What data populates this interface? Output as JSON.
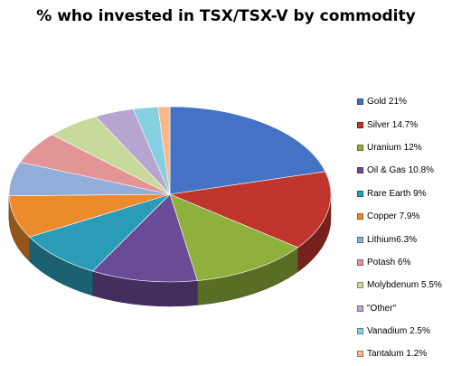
{
  "chart_data": {
    "type": "pie",
    "title": "% who invested in TSX/TSX-V by commodity",
    "legend_position": "right",
    "three_d": true,
    "slices": [
      {
        "label": "Gold",
        "legend": "Gold 21%",
        "value": 21,
        "color": "#4472c4"
      },
      {
        "label": "Silver",
        "legend": "Silver 14.7%",
        "value": 14.7,
        "color": "#c0352d"
      },
      {
        "label": "Uranium",
        "legend": "Uranium 12%",
        "value": 12,
        "color": "#8fb03c"
      },
      {
        "label": "Oil & Gas",
        "legend": "Oil & Gas 10.8%",
        "value": 10.8,
        "color": "#6a4c96"
      },
      {
        "label": "Rare Earth",
        "legend": "Rare Earth 9%",
        "value": 9,
        "color": "#2b9cb8"
      },
      {
        "label": "Copper",
        "legend": "Copper 7.9%",
        "value": 7.9,
        "color": "#ec8a2c"
      },
      {
        "label": "Lithium",
        "legend": "Lithium6.3%",
        "value": 6.3,
        "color": "#93add9"
      },
      {
        "label": "Potash",
        "legend": "Potash 6%",
        "value": 6,
        "color": "#e29594"
      },
      {
        "label": "Molybdenum",
        "legend": "Molybdenum 5.5%",
        "value": 5.5,
        "color": "#c7d99b"
      },
      {
        "label": "\"Other\"",
        "legend": " \"Other\"",
        "value": 4,
        "color": "#b6a5d1"
      },
      {
        "label": "Vanadium",
        "legend": "Vanadium 2.5%",
        "value": 2.5,
        "color": "#86cfe0"
      },
      {
        "label": "Tantalum",
        "legend": "Tantalum 1.2%",
        "value": 1.2,
        "color": "#f8b88a"
      }
    ]
  }
}
